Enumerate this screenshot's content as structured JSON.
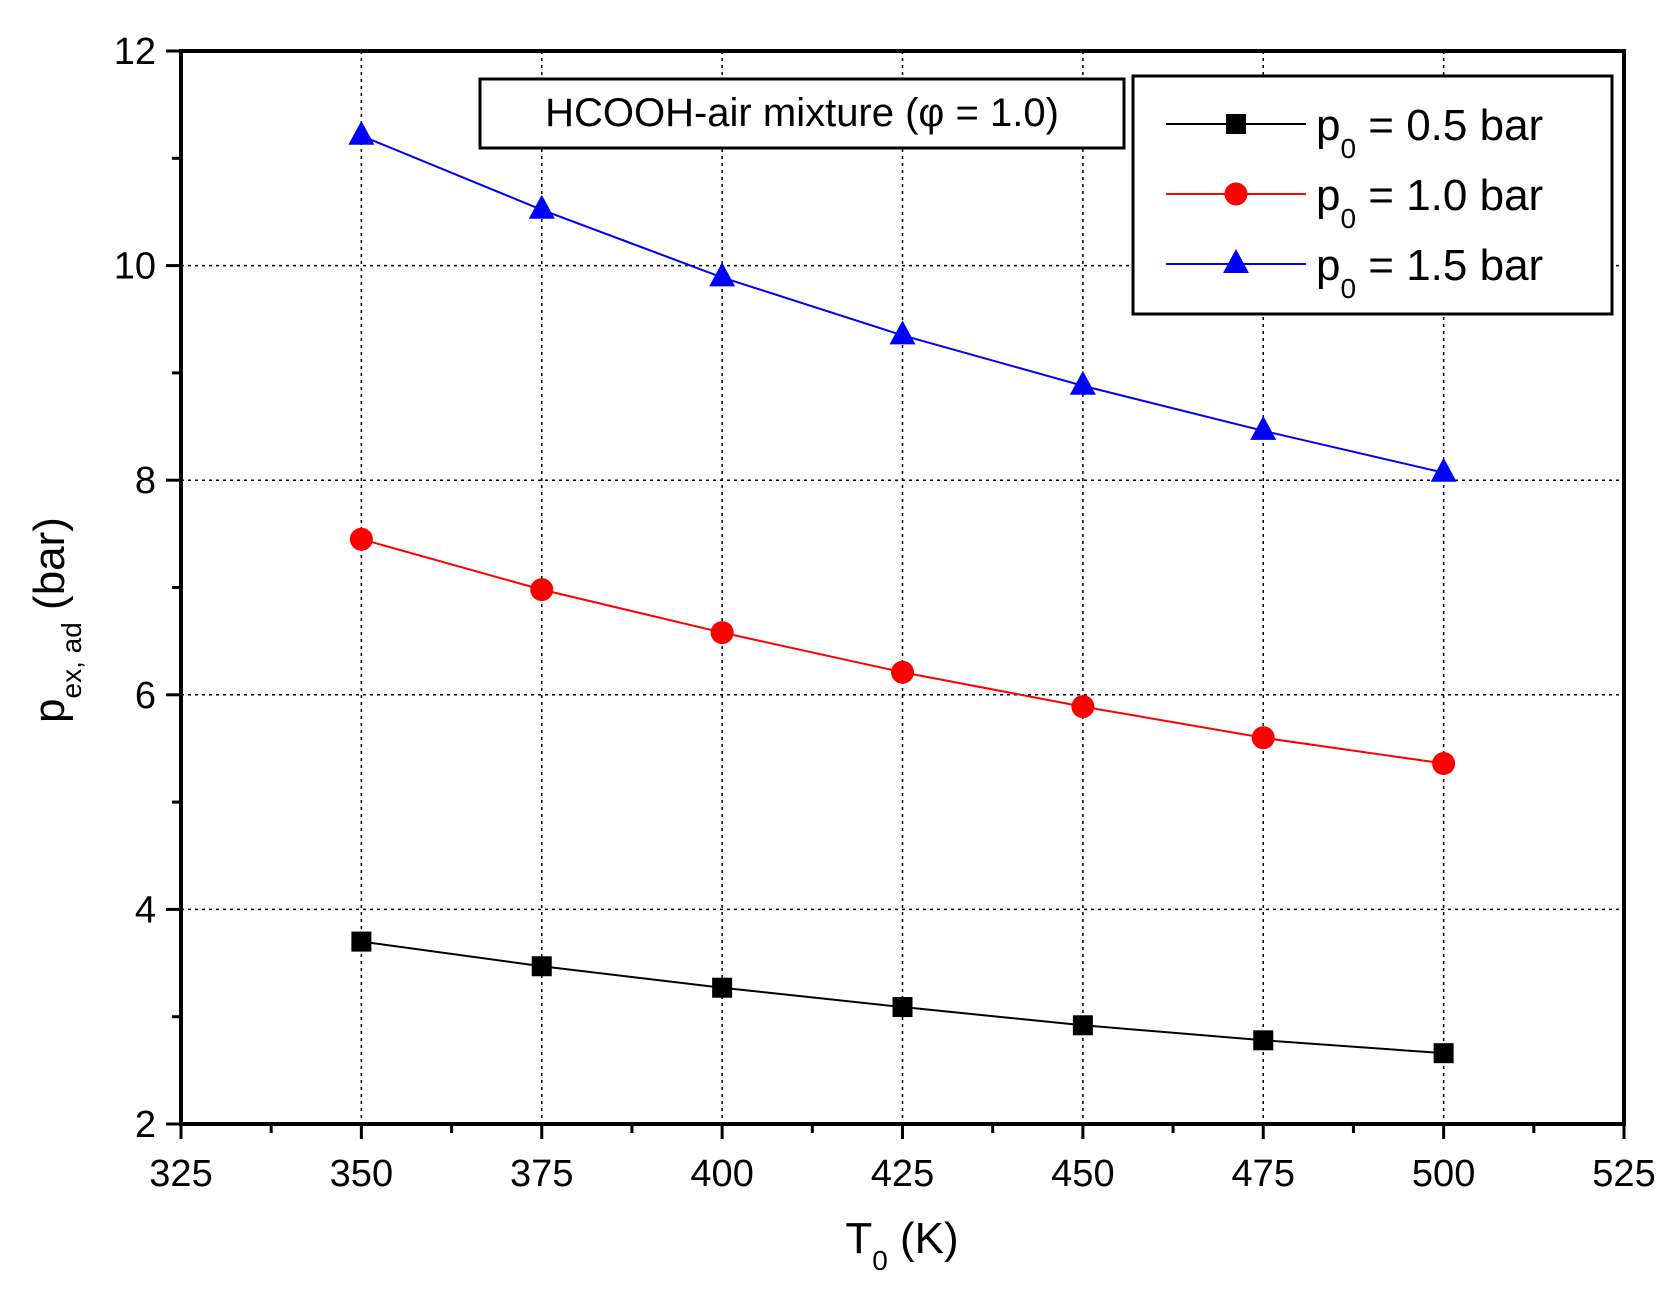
{
  "chart_data": {
    "type": "line",
    "title": "",
    "annotation": "HCOOH-air mixture (φ = 1.0)",
    "xlabel": {
      "main": "T",
      "sub": "0",
      "unit": " (K)"
    },
    "ylabel": {
      "main": "p",
      "sub": "ex, ad",
      "unit": " (bar)"
    },
    "xlim": [
      325,
      525
    ],
    "ylim": [
      2,
      12
    ],
    "x_major_ticks": [
      325,
      350,
      375,
      400,
      425,
      450,
      475,
      500,
      525
    ],
    "y_major_ticks": [
      2,
      4,
      6,
      8,
      10,
      12
    ],
    "x_tick_labels": [
      "325",
      "350",
      "375",
      "400",
      "425",
      "450",
      "475",
      "500",
      "525"
    ],
    "y_tick_labels": [
      "2",
      "4",
      "6",
      "8",
      "10",
      "12"
    ],
    "grid": true,
    "legend_position": "top-right",
    "x": [
      350,
      375,
      400,
      425,
      450,
      475,
      500
    ],
    "series": [
      {
        "name": "p0 = 0.5 bar",
        "label_main": "p",
        "label_sub": "0",
        "label_rest": " = 0.5 bar",
        "color": "#000000",
        "marker": "square",
        "values": [
          3.7,
          3.47,
          3.27,
          3.09,
          2.92,
          2.78,
          2.66
        ]
      },
      {
        "name": "p0 = 1.0 bar",
        "label_main": "p",
        "label_sub": "0",
        "label_rest": " = 1.0 bar",
        "color": "#ff0000",
        "marker": "circle",
        "values": [
          7.45,
          6.98,
          6.58,
          6.21,
          5.89,
          5.6,
          5.36
        ]
      },
      {
        "name": "p0 = 1.5 bar",
        "label_main": "p",
        "label_sub": "0",
        "label_rest": " = 1.5 bar",
        "color": "#0000ff",
        "marker": "triangle",
        "values": [
          11.21,
          10.52,
          9.89,
          9.35,
          8.88,
          8.46,
          8.07
        ]
      }
    ]
  }
}
